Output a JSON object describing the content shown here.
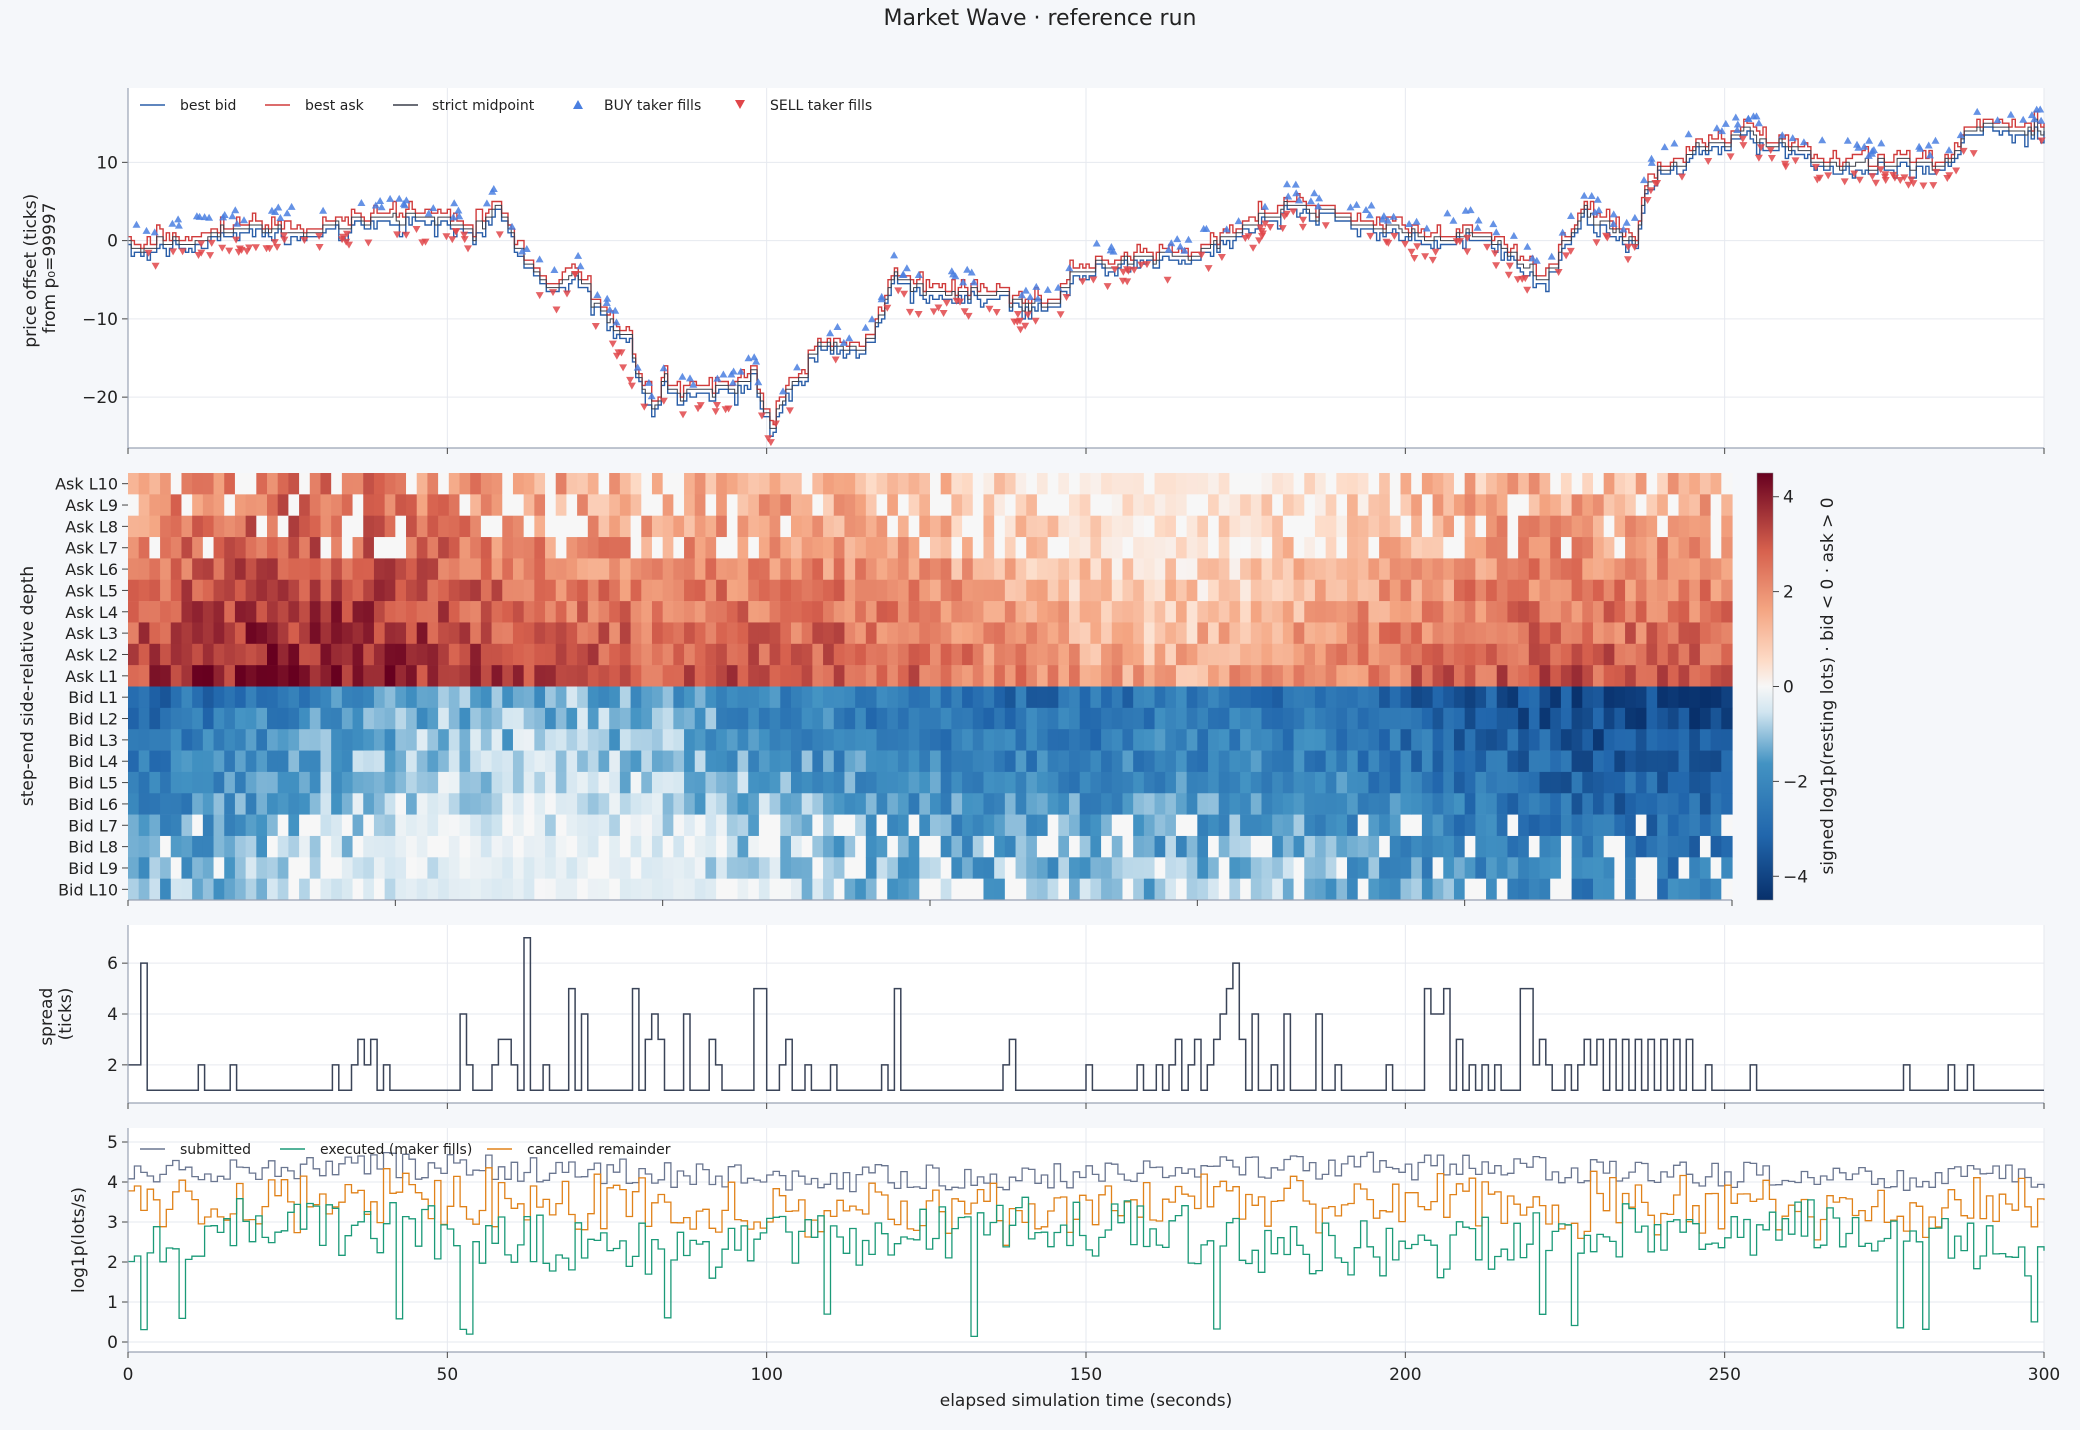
{
  "figure": {
    "title": "Market Wave · reference run",
    "xlabel": "elapsed simulation time (seconds)",
    "xticks": [
      0,
      50,
      100,
      150,
      200,
      250,
      300
    ],
    "xlim": [
      0,
      300
    ]
  },
  "chart_data": [
    {
      "type": "line",
      "panel": "price",
      "ylabel": "price offset (ticks)\nfrom p₀=99997",
      "ylim": [
        -26.5,
        19.5
      ],
      "yticks": [
        10,
        0,
        -10,
        -20
      ],
      "grid": true,
      "legend_position": "top-left",
      "legend": [
        "best bid",
        "best ask",
        "strict midpoint",
        "BUY taker fills",
        "SELL taker fills"
      ],
      "colors": {
        "bid": "#2a5ea8",
        "ask": "#d03b3b",
        "mid": "#3a3f4a",
        "buy": "#4a7fe0",
        "sell": "#e0464a"
      },
      "mid_anchors": [
        [
          0,
          0
        ],
        [
          2,
          -1
        ],
        [
          5,
          0
        ],
        [
          10,
          0.5
        ],
        [
          15,
          1
        ],
        [
          20,
          1.5
        ],
        [
          30,
          1.5
        ],
        [
          40,
          3
        ],
        [
          48,
          2.5
        ],
        [
          52,
          2
        ],
        [
          54,
          1
        ],
        [
          57,
          4
        ],
        [
          59,
          3
        ],
        [
          61,
          -2
        ],
        [
          63,
          -3
        ],
        [
          65,
          -5
        ],
        [
          67,
          -6
        ],
        [
          70,
          -3
        ],
        [
          72,
          -8
        ],
        [
          75,
          -10
        ],
        [
          78,
          -14
        ],
        [
          80,
          -18
        ],
        [
          82,
          -21
        ],
        [
          84,
          -18
        ],
        [
          86,
          -20
        ],
        [
          90,
          -19
        ],
        [
          95,
          -19.5
        ],
        [
          98,
          -17
        ],
        [
          100,
          -24
        ],
        [
          102,
          -21
        ],
        [
          105,
          -17
        ],
        [
          108,
          -13
        ],
        [
          112,
          -14
        ],
        [
          116,
          -13
        ],
        [
          118,
          -9
        ],
        [
          120,
          -4
        ],
        [
          122,
          -6.5
        ],
        [
          130,
          -6.5
        ],
        [
          136,
          -7
        ],
        [
          140,
          -8.5
        ],
        [
          145,
          -8
        ],
        [
          148,
          -4
        ],
        [
          152,
          -3
        ],
        [
          160,
          -2
        ],
        [
          165,
          -2.5
        ],
        [
          168,
          -1
        ],
        [
          172,
          0
        ],
        [
          178,
          3
        ],
        [
          182,
          5
        ],
        [
          186,
          3
        ],
        [
          188,
          4
        ],
        [
          192,
          2
        ],
        [
          196,
          2
        ],
        [
          200,
          1
        ],
        [
          205,
          0
        ],
        [
          210,
          1.5
        ],
        [
          215,
          -1
        ],
        [
          220,
          -4
        ],
        [
          222,
          -5
        ],
        [
          225,
          0
        ],
        [
          228,
          4
        ],
        [
          232,
          1
        ],
        [
          236,
          0
        ],
        [
          238,
          8
        ],
        [
          242,
          10
        ],
        [
          246,
          12
        ],
        [
          250,
          12
        ],
        [
          253,
          14
        ],
        [
          255,
          13
        ],
        [
          260,
          12
        ],
        [
          265,
          10
        ],
        [
          270,
          10
        ],
        [
          275,
          10
        ],
        [
          280,
          10
        ],
        [
          285,
          10
        ],
        [
          288,
          14
        ],
        [
          300,
          14.5
        ]
      ],
      "mid_seed": 11,
      "fill_seed": 23
    },
    {
      "type": "heatmap",
      "panel": "depth",
      "ylabel": "step-end side-relative depth",
      "rows": [
        "Ask L10",
        "Ask L9",
        "Ask L8",
        "Ask L7",
        "Ask L6",
        "Ask L5",
        "Ask L4",
        "Ask L3",
        "Ask L2",
        "Ask L1",
        "Bid L1",
        "Bid L2",
        "Bid L3",
        "Bid L4",
        "Bid L5",
        "Bid L6",
        "Bid L7",
        "Bid L8",
        "Bid L9",
        "Bid L10"
      ],
      "columns": 150,
      "colorbar_label": "signed log1p(resting lots) · bid < 0 · ask > 0",
      "colorbar_ticks": [
        4,
        2,
        0,
        -2,
        -4
      ],
      "vmin": -4.5,
      "vmax": 4.5,
      "colormap": "RdBu_r",
      "depth_seed": 37
    },
    {
      "type": "line",
      "panel": "spread",
      "ylabel": "spread\n(ticks)",
      "ylim": [
        0.5,
        7.5
      ],
      "yticks": [
        6,
        4,
        2
      ],
      "segments": [
        [
          0,
          2
        ],
        [
          2,
          6
        ],
        [
          3,
          1
        ],
        [
          11,
          2
        ],
        [
          12,
          1
        ],
        [
          16,
          2
        ],
        [
          17,
          1
        ],
        [
          32,
          2
        ],
        [
          33,
          1
        ],
        [
          35,
          2
        ],
        [
          36,
          3
        ],
        [
          37,
          2
        ],
        [
          38,
          3
        ],
        [
          39,
          1
        ],
        [
          40,
          2
        ],
        [
          41,
          1
        ],
        [
          52,
          4
        ],
        [
          53,
          2
        ],
        [
          54,
          1
        ],
        [
          57,
          2
        ],
        [
          58,
          3
        ],
        [
          60,
          2
        ],
        [
          61,
          1
        ],
        [
          62,
          7
        ],
        [
          63,
          1
        ],
        [
          65,
          2
        ],
        [
          66,
          1
        ],
        [
          69,
          5
        ],
        [
          70,
          1
        ],
        [
          71,
          4
        ],
        [
          72,
          1
        ],
        [
          79,
          5
        ],
        [
          80,
          1
        ],
        [
          81,
          3
        ],
        [
          82,
          4
        ],
        [
          83,
          3
        ],
        [
          84,
          1
        ],
        [
          87,
          4
        ],
        [
          88,
          1
        ],
        [
          91,
          3
        ],
        [
          92,
          2
        ],
        [
          93,
          1
        ],
        [
          98,
          5
        ],
        [
          100,
          1
        ],
        [
          102,
          2
        ],
        [
          103,
          3
        ],
        [
          104,
          1
        ],
        [
          106,
          2
        ],
        [
          107,
          1
        ],
        [
          110,
          2
        ],
        [
          111,
          1
        ],
        [
          118,
          2
        ],
        [
          119,
          1
        ],
        [
          120,
          5
        ],
        [
          121,
          1
        ],
        [
          137,
          2
        ],
        [
          138,
          3
        ],
        [
          139,
          1
        ],
        [
          150,
          2
        ],
        [
          151,
          1
        ],
        [
          158,
          2
        ],
        [
          159,
          1
        ],
        [
          161,
          2
        ],
        [
          162,
          1
        ],
        [
          163,
          2
        ],
        [
          164,
          3
        ],
        [
          165,
          1
        ],
        [
          166,
          2
        ],
        [
          167,
          3
        ],
        [
          168,
          1
        ],
        [
          169,
          2
        ],
        [
          170,
          3
        ],
        [
          171,
          4
        ],
        [
          172,
          5
        ],
        [
          173,
          6
        ],
        [
          174,
          3
        ],
        [
          175,
          1
        ],
        [
          176,
          4
        ],
        [
          177,
          1
        ],
        [
          179,
          2
        ],
        [
          180,
          1
        ],
        [
          181,
          4
        ],
        [
          182,
          1
        ],
        [
          186,
          4
        ],
        [
          187,
          1
        ],
        [
          189,
          2
        ],
        [
          190,
          1
        ],
        [
          197,
          2
        ],
        [
          198,
          1
        ],
        [
          203,
          5
        ],
        [
          204,
          4
        ],
        [
          206,
          5
        ],
        [
          207,
          1
        ],
        [
          208,
          3
        ],
        [
          209,
          1
        ],
        [
          210,
          2
        ],
        [
          211,
          1
        ],
        [
          212,
          2
        ],
        [
          213,
          1
        ],
        [
          214,
          2
        ],
        [
          215,
          1
        ],
        [
          218,
          5
        ],
        [
          220,
          2
        ],
        [
          221,
          3
        ],
        [
          222,
          2
        ],
        [
          223,
          1
        ],
        [
          225,
          2
        ],
        [
          226,
          1
        ],
        [
          227,
          2
        ],
        [
          228,
          3
        ],
        [
          229,
          2
        ],
        [
          230,
          3
        ],
        [
          231,
          1
        ],
        [
          232,
          3
        ],
        [
          233,
          1
        ],
        [
          234,
          3
        ],
        [
          235,
          1
        ],
        [
          236,
          3
        ],
        [
          237,
          1
        ],
        [
          238,
          3
        ],
        [
          239,
          1
        ],
        [
          240,
          3
        ],
        [
          241,
          1
        ],
        [
          242,
          3
        ],
        [
          243,
          1
        ],
        [
          244,
          3
        ],
        [
          245,
          1
        ],
        [
          247,
          2
        ],
        [
          248,
          1
        ],
        [
          254,
          2
        ],
        [
          255,
          1
        ],
        [
          278,
          2
        ],
        [
          279,
          1
        ],
        [
          285,
          2
        ],
        [
          286,
          1
        ],
        [
          288,
          2
        ],
        [
          289,
          1
        ],
        [
          300,
          1
        ]
      ]
    },
    {
      "type": "line",
      "panel": "flow",
      "ylabel": "log1p(lots/s)",
      "ylim": [
        -0.25,
        5.35
      ],
      "yticks": [
        5,
        4,
        3,
        2,
        1,
        0
      ],
      "legend": [
        "submitted",
        "executed (maker fills)",
        "cancelled remainder"
      ],
      "colors": {
        "submitted": "#6a7690",
        "executed": "#1b9a78",
        "cancelled": "#e0821a"
      },
      "flow_seed": 53
    }
  ]
}
